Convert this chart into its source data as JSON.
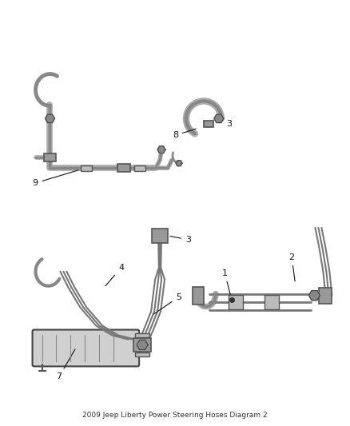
{
  "bg_color": "#ffffff",
  "line_color": "#666666",
  "dark_color": "#111111",
  "fig_width": 4.38,
  "fig_height": 5.33,
  "dpi": 100
}
